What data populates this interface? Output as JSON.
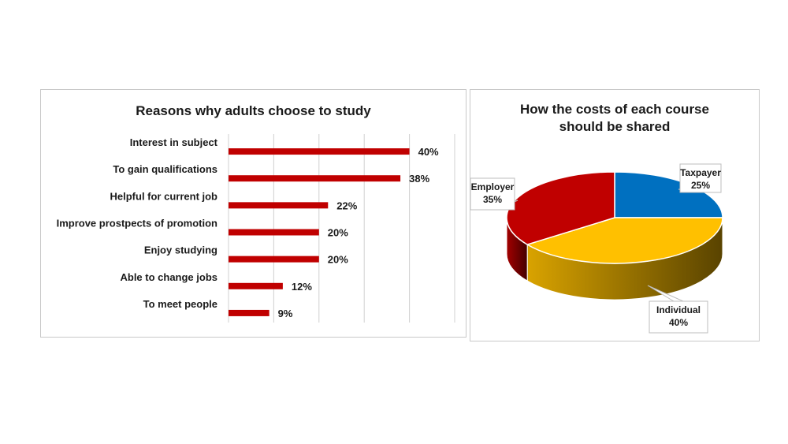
{
  "chart_data": [
    {
      "type": "bar",
      "orientation": "horizontal",
      "title": "Reasons why adults choose to study",
      "categories": [
        "Interest in subject",
        "To gain qualifications",
        "Helpful for current job",
        "Improve prostpects of promotion",
        "Enjoy studying",
        "Able to change jobs",
        "To meet people"
      ],
      "values": [
        40,
        38,
        22,
        20,
        20,
        12,
        9
      ],
      "data_labels": [
        "40%",
        "38%",
        "22%",
        "20%",
        "20%",
        "12%",
        "9%"
      ],
      "xlim": [
        0,
        50
      ],
      "grid": true,
      "bar_color": "#C00000"
    },
    {
      "type": "pie",
      "title": "How the costs of each course should be shared",
      "title_lines": [
        "How the costs of each course",
        "should be shared"
      ],
      "style": "3d",
      "slices": [
        {
          "name": "Taxpayer",
          "value": 25,
          "label": "25%",
          "color": "#0070C0"
        },
        {
          "name": "Individual",
          "value": 40,
          "label": "40%",
          "color": "#FFC000"
        },
        {
          "name": "Employer",
          "value": 35,
          "label": "35%",
          "color": "#C00000"
        }
      ]
    }
  ]
}
